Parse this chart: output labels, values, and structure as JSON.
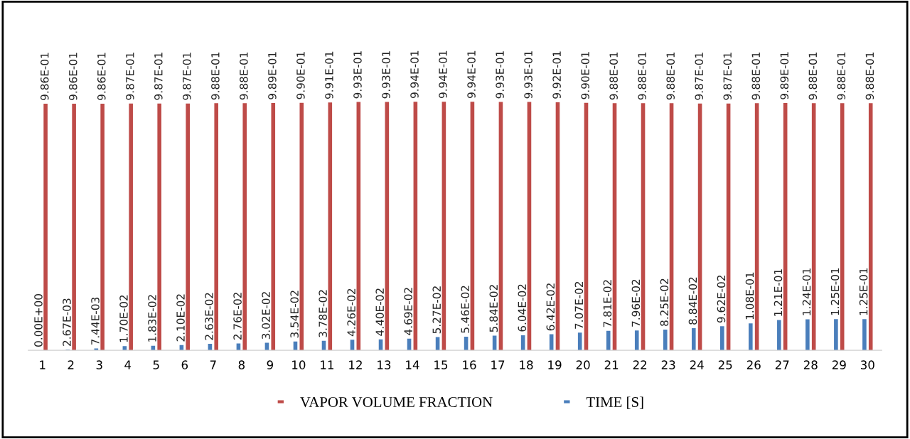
{
  "chart_data": {
    "type": "bar",
    "categories": [
      "1",
      "2",
      "3",
      "4",
      "5",
      "6",
      "7",
      "8",
      "9",
      "10",
      "11",
      "12",
      "13",
      "14",
      "15",
      "16",
      "17",
      "18",
      "19",
      "20",
      "21",
      "22",
      "23",
      "24",
      "25",
      "26",
      "27",
      "28",
      "29",
      "30"
    ],
    "tick_labels": "x",
    "grid": false,
    "legend": "bottom",
    "series": [
      {
        "name": "TIME [S]",
        "color": "#4a7ebb",
        "values": [
          0.0,
          0.00267,
          0.00744,
          0.017,
          0.0183,
          0.021,
          0.0263,
          0.0276,
          0.0302,
          0.0354,
          0.0378,
          0.0426,
          0.044,
          0.0469,
          0.0527,
          0.0546,
          0.0584,
          0.0604,
          0.0642,
          0.0707,
          0.0781,
          0.0796,
          0.0825,
          0.0884,
          0.0962,
          0.108,
          0.121,
          0.124,
          0.125,
          0.125
        ],
        "value_labels": [
          "0.00E+00",
          "2.67E-03",
          "7.44E-03",
          "1.70E-02",
          "1.83E-02",
          "2.10E-02",
          "2.63E-02",
          "2.76E-02",
          "3.02E-02",
          "3.54E-02",
          "3.78E-02",
          "4.26E-02",
          "4.40E-02",
          "4.69E-02",
          "5.27E-02",
          "5.46E-02",
          "5.84E-02",
          "6.04E-02",
          "6.42E-02",
          "7.07E-02",
          "7.81E-02",
          "7.96E-02",
          "8.25E-02",
          "8.84E-02",
          "9.62E-02",
          "1.08E-01",
          "1.21E-01",
          "1.24E-01",
          "1.25E-01",
          "1.25E-01"
        ]
      },
      {
        "name": "VAPOR VOLUME FRACTION",
        "color": "#be4b48",
        "values": [
          0.986,
          0.986,
          0.986,
          0.987,
          0.987,
          0.987,
          0.988,
          0.988,
          0.989,
          0.99,
          0.991,
          0.993,
          0.993,
          0.994,
          0.994,
          0.994,
          0.993,
          0.993,
          0.992,
          0.99,
          0.988,
          0.988,
          0.988,
          0.987,
          0.987,
          0.988,
          0.989,
          0.988,
          0.988,
          0.988
        ],
        "value_labels": [
          "9.86E-01",
          "9.86E-01",
          "9.86E-01",
          "9.87E-01",
          "9.87E-01",
          "9.87E-01",
          "9.88E-01",
          "9.88E-01",
          "9.89E-01",
          "9.90E-01",
          "9.91E-01",
          "9.93E-01",
          "9.93E-01",
          "9.94E-01",
          "9.94E-01",
          "9.94E-01",
          "9.93E-01",
          "9.93E-01",
          "9.92E-01",
          "9.90E-01",
          "9.88E-01",
          "9.88E-01",
          "9.88E-01",
          "9.87E-01",
          "9.87E-01",
          "9.88E-01",
          "9.89E-01",
          "9.88E-01",
          "9.88E-01",
          "9.88E-01"
        ]
      }
    ]
  }
}
